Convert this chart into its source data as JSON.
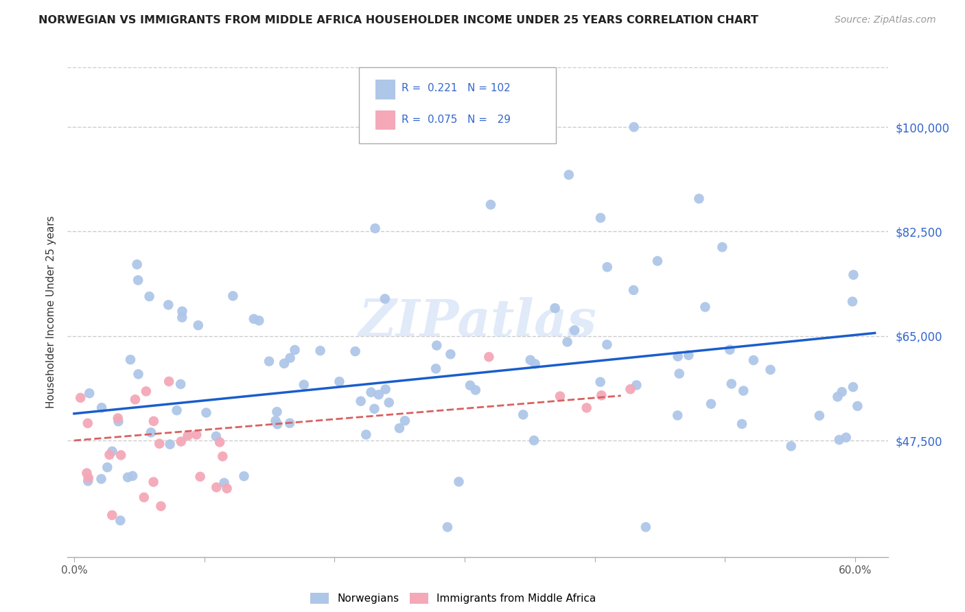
{
  "title": "NORWEGIAN VS IMMIGRANTS FROM MIDDLE AFRICA HOUSEHOLDER INCOME UNDER 25 YEARS CORRELATION CHART",
  "source": "Source: ZipAtlas.com",
  "ylabel": "Householder Income Under 25 years",
  "ytick_labels": [
    "$47,500",
    "$65,000",
    "$82,500",
    "$100,000"
  ],
  "ytick_vals": [
    47500,
    65000,
    82500,
    100000
  ],
  "ylim": [
    28000,
    110000
  ],
  "xlim": [
    -0.005,
    0.625
  ],
  "norwegian_color": "#aec6e8",
  "immigrant_color": "#f4a8b8",
  "norwegian_line_color": "#1a5dcc",
  "immigrant_line_color": "#d96060",
  "watermark": "ZIPatlas",
  "legend_r_norwegian": "0.221",
  "legend_n_norwegian": "102",
  "legend_r_immigrant": "0.075",
  "legend_n_immigrant": "29",
  "nor_trend_x": [
    0.0,
    0.615
  ],
  "nor_trend_y": [
    52000,
    65500
  ],
  "imm_trend_x": [
    0.0,
    0.42
  ],
  "imm_trend_y": [
    47500,
    55000
  ]
}
